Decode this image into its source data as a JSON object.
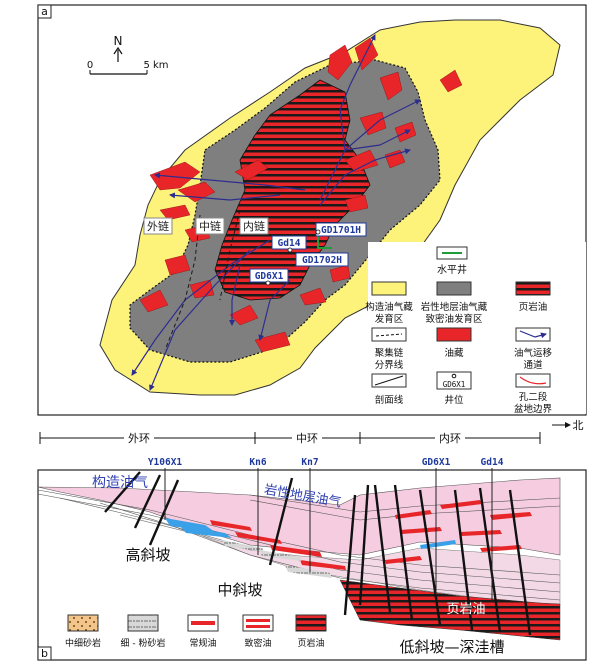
{
  "panel_a": {
    "label": "a",
    "north": "N",
    "scale_zero": "0",
    "scale_len": "5 km",
    "chain_outer": "外链",
    "chain_middle": "中链",
    "chain_inner": "内链",
    "wells": [
      "GD1701H",
      "Gd14",
      "GD1702H",
      "GD6X1"
    ],
    "legend": {
      "horizontal_well": "水平井",
      "structural_l1": "构造油气藏",
      "structural_l2": "发育区",
      "litho_l1": "岩性地层油气藏",
      "litho_l2": "致密油发育区",
      "shale_oil": "页岩油",
      "chain_boundary_l1": "聚集链",
      "chain_boundary_l2": "分界线",
      "reservoir": "油藏",
      "migration_l1": "油气运移",
      "migration_l2": "通道",
      "section_line": "剖面线",
      "well_site_code": "GD6X1",
      "well_site": "井位",
      "kong2_l1": "孔二段",
      "kong2_l2": "盆地边界"
    }
  },
  "panel_b": {
    "label": "b",
    "ring_outer": "外环",
    "ring_middle": "中环",
    "ring_inner": "内环",
    "north_arrow": "北",
    "wells": [
      "Y106X1",
      "Kn6",
      "Kn7",
      "GD6X1",
      "Gd14"
    ],
    "structural": "构造油气",
    "litho": "岩性地层油气",
    "high_slope": "高斜坡",
    "mid_slope": "中斜坡",
    "low_slope": "低斜坡—深洼槽",
    "shale_oil": "页岩油",
    "legend": [
      "中细砂岩",
      "细 - 粉砂岩",
      "常规油",
      "致密油",
      "页岩油"
    ]
  },
  "colors": {
    "yellow": "#fdf37a",
    "gray": "#7f7f7f",
    "red": "#e8262a",
    "pink": "#f6cde0",
    "blue_line": "#2e2d8f",
    "well_blue": "#1f3a9c",
    "green": "#1f9d3a"
  }
}
